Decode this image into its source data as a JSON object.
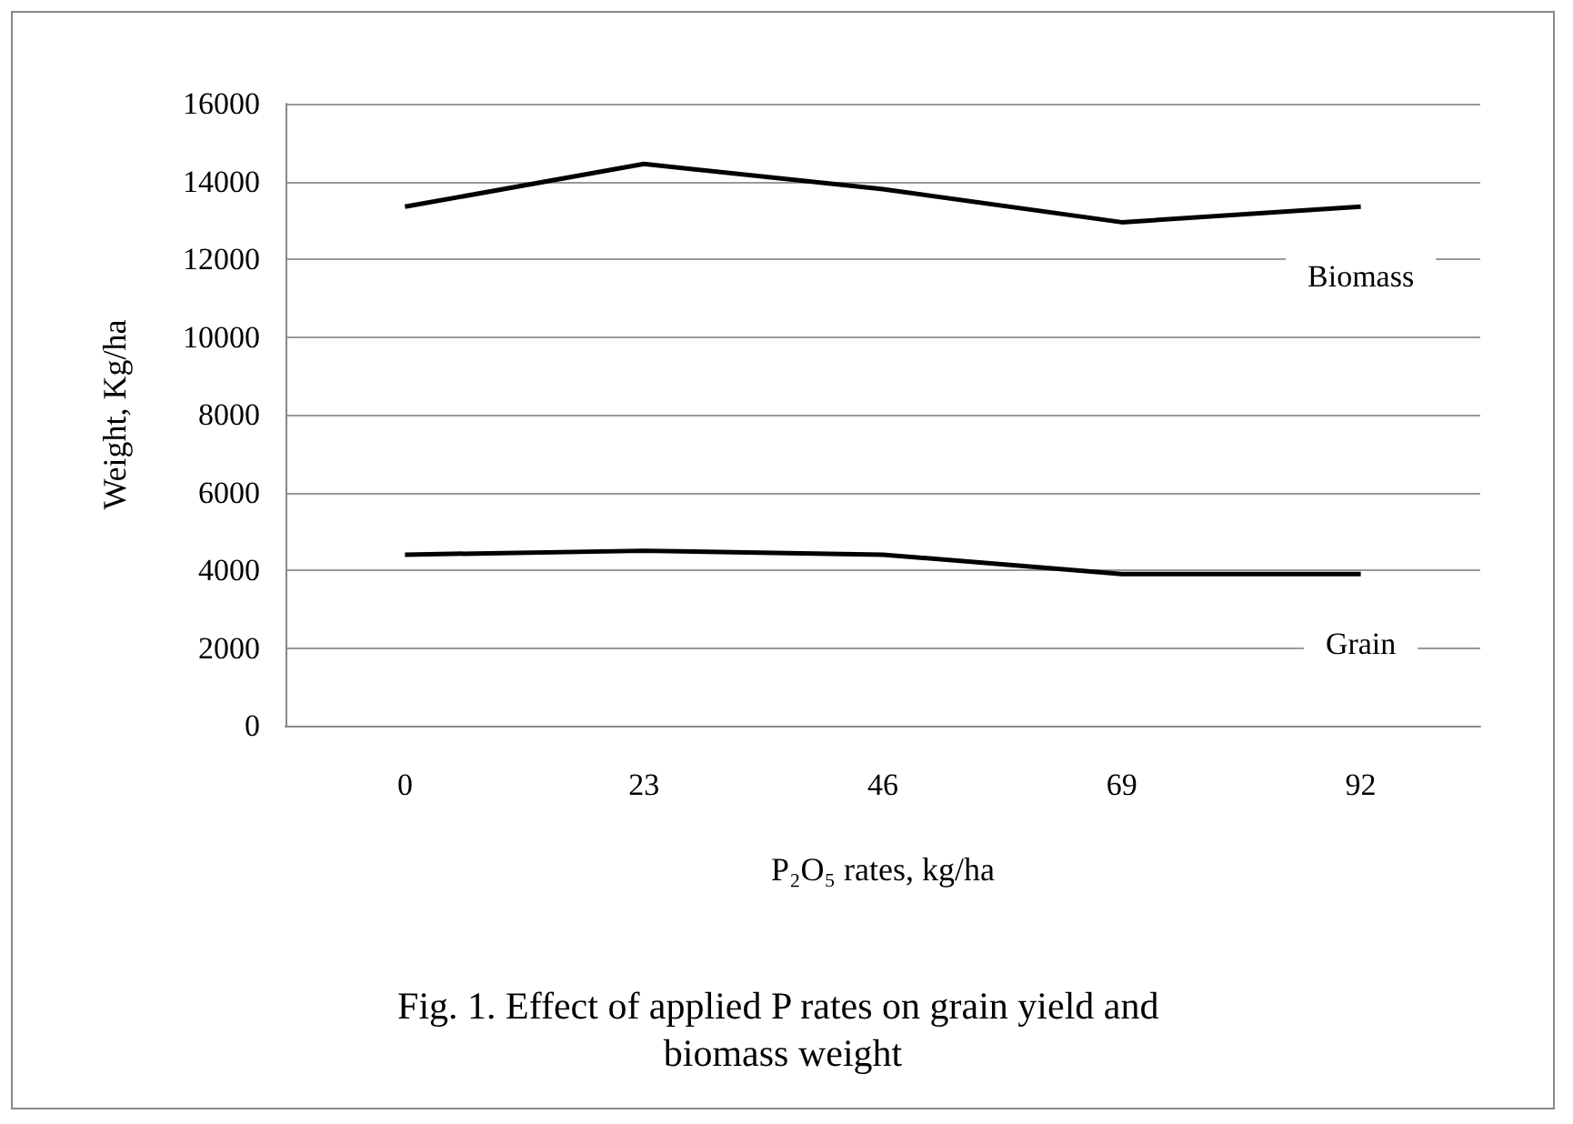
{
  "chart_data": {
    "type": "line",
    "title": "Fig. 1. Effect of applied P rates on grain yield and biomass weight",
    "xlabel": "P₂O₅ rates, kg/ha",
    "ylabel": "Weight, Kg/ha",
    "categories": [
      "0",
      "23",
      "46",
      "69",
      "92"
    ],
    "series": [
      {
        "name": "Biomass",
        "color": "#000000",
        "values": [
          13350,
          14450,
          13800,
          12950,
          13350
        ]
      },
      {
        "name": "Grain",
        "color": "#000000",
        "values": [
          4400,
          4500,
          4400,
          3900,
          3900
        ]
      }
    ],
    "ylim": [
      0,
      16000
    ],
    "yticks": [
      0,
      2000,
      4000,
      6000,
      8000,
      10000,
      12000,
      14000,
      16000
    ],
    "grid": "y",
    "marker": "none"
  }
}
